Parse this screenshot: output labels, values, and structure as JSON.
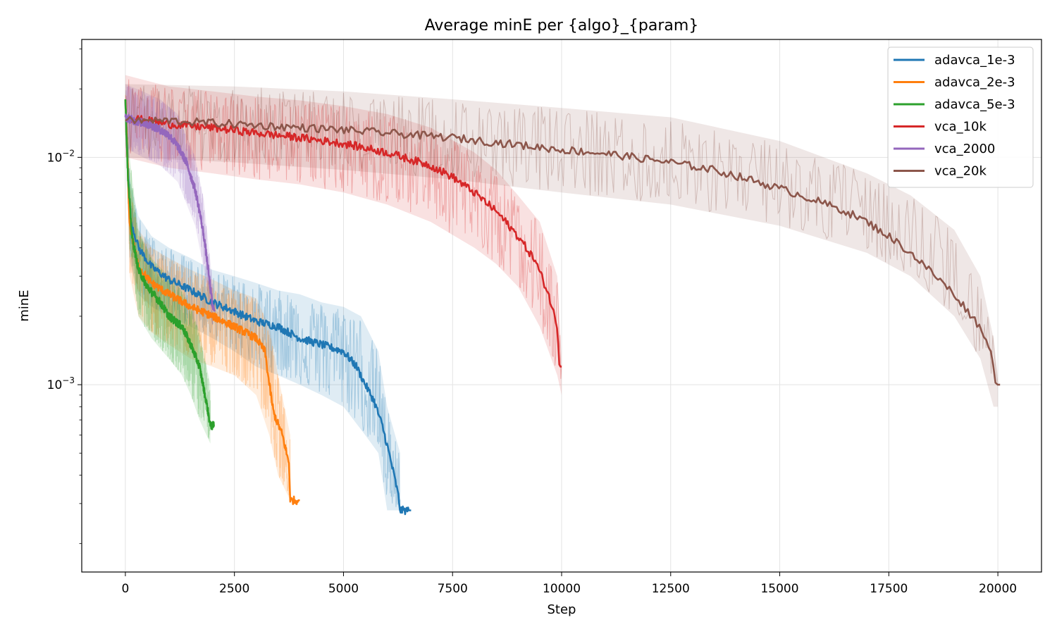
{
  "chart_data": {
    "type": "line",
    "title": "Average minE per {algo}_{param}",
    "xlabel": "Step",
    "ylabel": "minE",
    "xlim": [
      -1000,
      21000
    ],
    "ylim": [
      0.00015,
      0.033
    ],
    "yscale": "log",
    "grid": true,
    "legend_position": "top-right",
    "x_ticks": [
      0,
      2500,
      5000,
      7500,
      10000,
      12500,
      15000,
      17500,
      20000
    ],
    "y_major_ticks": [
      {
        "value": 0.001,
        "base": "10",
        "exp": "−3"
      },
      {
        "value": 0.01,
        "base": "10",
        "exp": "−2"
      }
    ],
    "series": [
      {
        "name": "adavca_1e-3",
        "color": "#1f77b4",
        "mean": [
          [
            0,
            0.018
          ],
          [
            100,
            0.0055
          ],
          [
            300,
            0.004
          ],
          [
            600,
            0.0033
          ],
          [
            1000,
            0.0029
          ],
          [
            1500,
            0.0026
          ],
          [
            2000,
            0.0023
          ],
          [
            2500,
            0.0021
          ],
          [
            3000,
            0.0019
          ],
          [
            3500,
            0.0018
          ],
          [
            4000,
            0.0016
          ],
          [
            4500,
            0.0015
          ],
          [
            5000,
            0.0014
          ],
          [
            5300,
            0.0012
          ],
          [
            5500,
            0.001
          ],
          [
            5700,
            0.00085
          ],
          [
            5900,
            0.00065
          ],
          [
            6100,
            0.00045
          ],
          [
            6250,
            0.00033
          ],
          [
            6300,
            0.00028
          ],
          [
            6550,
            0.00028
          ]
        ],
        "band_low": [
          [
            0,
            0.015
          ],
          [
            100,
            0.0035
          ],
          [
            300,
            0.0025
          ],
          [
            600,
            0.0022
          ],
          [
            1000,
            0.002
          ],
          [
            1500,
            0.0018
          ],
          [
            2000,
            0.0016
          ],
          [
            2500,
            0.0014
          ],
          [
            3000,
            0.0012
          ],
          [
            3500,
            0.0011
          ],
          [
            4000,
            0.001
          ],
          [
            4500,
            0.0009
          ],
          [
            5000,
            0.0008
          ],
          [
            5500,
            0.0006
          ],
          [
            5800,
            0.0005
          ],
          [
            6000,
            0.00028
          ],
          [
            6300,
            0.00028
          ]
        ],
        "band_high": [
          [
            0,
            0.02
          ],
          [
            100,
            0.008
          ],
          [
            300,
            0.0055
          ],
          [
            600,
            0.0045
          ],
          [
            1000,
            0.004
          ],
          [
            1500,
            0.0036
          ],
          [
            2000,
            0.0032
          ],
          [
            2500,
            0.003
          ],
          [
            3000,
            0.0028
          ],
          [
            3500,
            0.0026
          ],
          [
            4000,
            0.0025
          ],
          [
            4500,
            0.0023
          ],
          [
            5000,
            0.0022
          ],
          [
            5400,
            0.002
          ],
          [
            5800,
            0.0014
          ],
          [
            6000,
            0.0008
          ],
          [
            6300,
            0.0005
          ]
        ]
      },
      {
        "name": "adavca_2e-3",
        "color": "#ff7f0e",
        "mean": [
          [
            0,
            0.018
          ],
          [
            100,
            0.005
          ],
          [
            300,
            0.0033
          ],
          [
            600,
            0.0028
          ],
          [
            1000,
            0.0025
          ],
          [
            1500,
            0.0022
          ],
          [
            2000,
            0.002
          ],
          [
            2500,
            0.0018
          ],
          [
            3000,
            0.0016
          ],
          [
            3200,
            0.0014
          ],
          [
            3300,
            0.001
          ],
          [
            3400,
            0.00075
          ],
          [
            3600,
            0.0006
          ],
          [
            3750,
            0.00045
          ],
          [
            3780,
            0.00031
          ],
          [
            4000,
            0.00031
          ]
        ],
        "band_low": [
          [
            0,
            0.015
          ],
          [
            100,
            0.003
          ],
          [
            300,
            0.002
          ],
          [
            600,
            0.0017
          ],
          [
            1000,
            0.0015
          ],
          [
            1500,
            0.0013
          ],
          [
            2000,
            0.0012
          ],
          [
            2500,
            0.0011
          ],
          [
            3000,
            0.0009
          ],
          [
            3300,
            0.0006
          ],
          [
            3500,
            0.0004
          ],
          [
            3780,
            0.00031
          ]
        ],
        "band_high": [
          [
            0,
            0.02
          ],
          [
            100,
            0.0075
          ],
          [
            300,
            0.0048
          ],
          [
            600,
            0.004
          ],
          [
            1000,
            0.0036
          ],
          [
            1500,
            0.0032
          ],
          [
            2000,
            0.0029
          ],
          [
            2500,
            0.0026
          ],
          [
            3000,
            0.0024
          ],
          [
            3300,
            0.0018
          ],
          [
            3500,
            0.0011
          ],
          [
            3780,
            0.0006
          ]
        ]
      },
      {
        "name": "adavca_5e-3",
        "color": "#2ca02c",
        "mean": [
          [
            0,
            0.018
          ],
          [
            60,
            0.008
          ],
          [
            150,
            0.0045
          ],
          [
            300,
            0.0032
          ],
          [
            500,
            0.0027
          ],
          [
            800,
            0.0023
          ],
          [
            1000,
            0.002
          ],
          [
            1300,
            0.0018
          ],
          [
            1500,
            0.0015
          ],
          [
            1700,
            0.0012
          ],
          [
            1850,
            0.00085
          ],
          [
            1950,
            0.00066
          ],
          [
            2050,
            0.00066
          ]
        ],
        "band_low": [
          [
            0,
            0.015
          ],
          [
            100,
            0.004
          ],
          [
            300,
            0.002
          ],
          [
            600,
            0.0016
          ],
          [
            1000,
            0.0013
          ],
          [
            1300,
            0.0011
          ],
          [
            1500,
            0.0009
          ],
          [
            1700,
            0.0007
          ],
          [
            1950,
            0.00055
          ]
        ],
        "band_high": [
          [
            0,
            0.02
          ],
          [
            100,
            0.01
          ],
          [
            300,
            0.0048
          ],
          [
            600,
            0.0036
          ],
          [
            1000,
            0.003
          ],
          [
            1300,
            0.0026
          ],
          [
            1500,
            0.0022
          ],
          [
            1700,
            0.0017
          ],
          [
            1950,
            0.001
          ]
        ]
      },
      {
        "name": "vca_10k",
        "color": "#d62728",
        "mean": [
          [
            0,
            0.015
          ],
          [
            500,
            0.0145
          ],
          [
            1000,
            0.014
          ],
          [
            2000,
            0.0135
          ],
          [
            3000,
            0.0128
          ],
          [
            4000,
            0.0122
          ],
          [
            5000,
            0.0115
          ],
          [
            6000,
            0.0105
          ],
          [
            7000,
            0.0092
          ],
          [
            7500,
            0.0082
          ],
          [
            8000,
            0.007
          ],
          [
            8500,
            0.0058
          ],
          [
            9000,
            0.0045
          ],
          [
            9400,
            0.0035
          ],
          [
            9700,
            0.0025
          ],
          [
            9900,
            0.0018
          ],
          [
            9950,
            0.0012
          ],
          [
            10000,
            0.0012
          ]
        ],
        "band_low": [
          [
            0,
            0.01
          ],
          [
            1000,
            0.009
          ],
          [
            2000,
            0.0085
          ],
          [
            3000,
            0.008
          ],
          [
            4000,
            0.0076
          ],
          [
            5000,
            0.007
          ],
          [
            6000,
            0.0062
          ],
          [
            7000,
            0.0052
          ],
          [
            8000,
            0.004
          ],
          [
            8500,
            0.0034
          ],
          [
            9000,
            0.0027
          ],
          [
            9500,
            0.0018
          ],
          [
            9900,
            0.0011
          ],
          [
            10000,
            0.0009
          ]
        ],
        "band_high": [
          [
            0,
            0.023
          ],
          [
            1000,
            0.0205
          ],
          [
            2000,
            0.0195
          ],
          [
            3000,
            0.0185
          ],
          [
            4000,
            0.0178
          ],
          [
            5000,
            0.0168
          ],
          [
            6000,
            0.0155
          ],
          [
            7000,
            0.0135
          ],
          [
            8000,
            0.0105
          ],
          [
            8500,
            0.0088
          ],
          [
            9000,
            0.0068
          ],
          [
            9500,
            0.0052
          ],
          [
            9900,
            0.003
          ],
          [
            10000,
            0.0013
          ]
        ]
      },
      {
        "name": "vca_2000",
        "color": "#9467bd",
        "mean": [
          [
            0,
            0.015
          ],
          [
            200,
            0.0145
          ],
          [
            400,
            0.0142
          ],
          [
            600,
            0.0138
          ],
          [
            800,
            0.0132
          ],
          [
            1000,
            0.0125
          ],
          [
            1200,
            0.0112
          ],
          [
            1400,
            0.0095
          ],
          [
            1600,
            0.0072
          ],
          [
            1700,
            0.0058
          ],
          [
            1800,
            0.0045
          ],
          [
            1900,
            0.0032
          ],
          [
            2000,
            0.0022
          ],
          [
            2050,
            0.0021
          ]
        ],
        "band_low": [
          [
            0,
            0.011
          ],
          [
            400,
            0.01
          ],
          [
            800,
            0.0092
          ],
          [
            1200,
            0.0078
          ],
          [
            1600,
            0.005
          ],
          [
            1800,
            0.0032
          ],
          [
            2000,
            0.0018
          ]
        ],
        "band_high": [
          [
            0,
            0.021
          ],
          [
            400,
            0.0195
          ],
          [
            800,
            0.018
          ],
          [
            1200,
            0.0155
          ],
          [
            1600,
            0.01
          ],
          [
            1800,
            0.0065
          ],
          [
            2000,
            0.0028
          ]
        ]
      },
      {
        "name": "vca_20k",
        "color": "#8c564b",
        "mean": [
          [
            0,
            0.0145
          ],
          [
            1000,
            0.0145
          ],
          [
            2500,
            0.014
          ],
          [
            5000,
            0.0132
          ],
          [
            7500,
            0.0122
          ],
          [
            10000,
            0.0108
          ],
          [
            11000,
            0.0104
          ],
          [
            12500,
            0.0095
          ],
          [
            13500,
            0.0088
          ],
          [
            14500,
            0.0078
          ],
          [
            15500,
            0.0068
          ],
          [
            16500,
            0.0058
          ],
          [
            17000,
            0.0052
          ],
          [
            17500,
            0.0045
          ],
          [
            18000,
            0.0038
          ],
          [
            18500,
            0.0031
          ],
          [
            19000,
            0.0025
          ],
          [
            19500,
            0.0019
          ],
          [
            19800,
            0.0015
          ],
          [
            19900,
            0.0012
          ],
          [
            19950,
            0.001
          ],
          [
            20050,
            0.001
          ]
        ],
        "band_low": [
          [
            0,
            0.01
          ],
          [
            2500,
            0.0095
          ],
          [
            5000,
            0.0088
          ],
          [
            7500,
            0.008
          ],
          [
            10000,
            0.007
          ],
          [
            12500,
            0.0062
          ],
          [
            15000,
            0.005
          ],
          [
            17000,
            0.0038
          ],
          [
            18000,
            0.003
          ],
          [
            19000,
            0.002
          ],
          [
            19600,
            0.0013
          ],
          [
            19900,
            0.0008
          ],
          [
            20000,
            0.0008
          ]
        ],
        "band_high": [
          [
            0,
            0.021
          ],
          [
            2500,
            0.0205
          ],
          [
            5000,
            0.0195
          ],
          [
            7500,
            0.018
          ],
          [
            10000,
            0.0165
          ],
          [
            12500,
            0.015
          ],
          [
            15000,
            0.0118
          ],
          [
            17000,
            0.0085
          ],
          [
            18000,
            0.0068
          ],
          [
            19000,
            0.0048
          ],
          [
            19600,
            0.003
          ],
          [
            19900,
            0.0016
          ],
          [
            20000,
            0.0011
          ]
        ]
      }
    ]
  }
}
